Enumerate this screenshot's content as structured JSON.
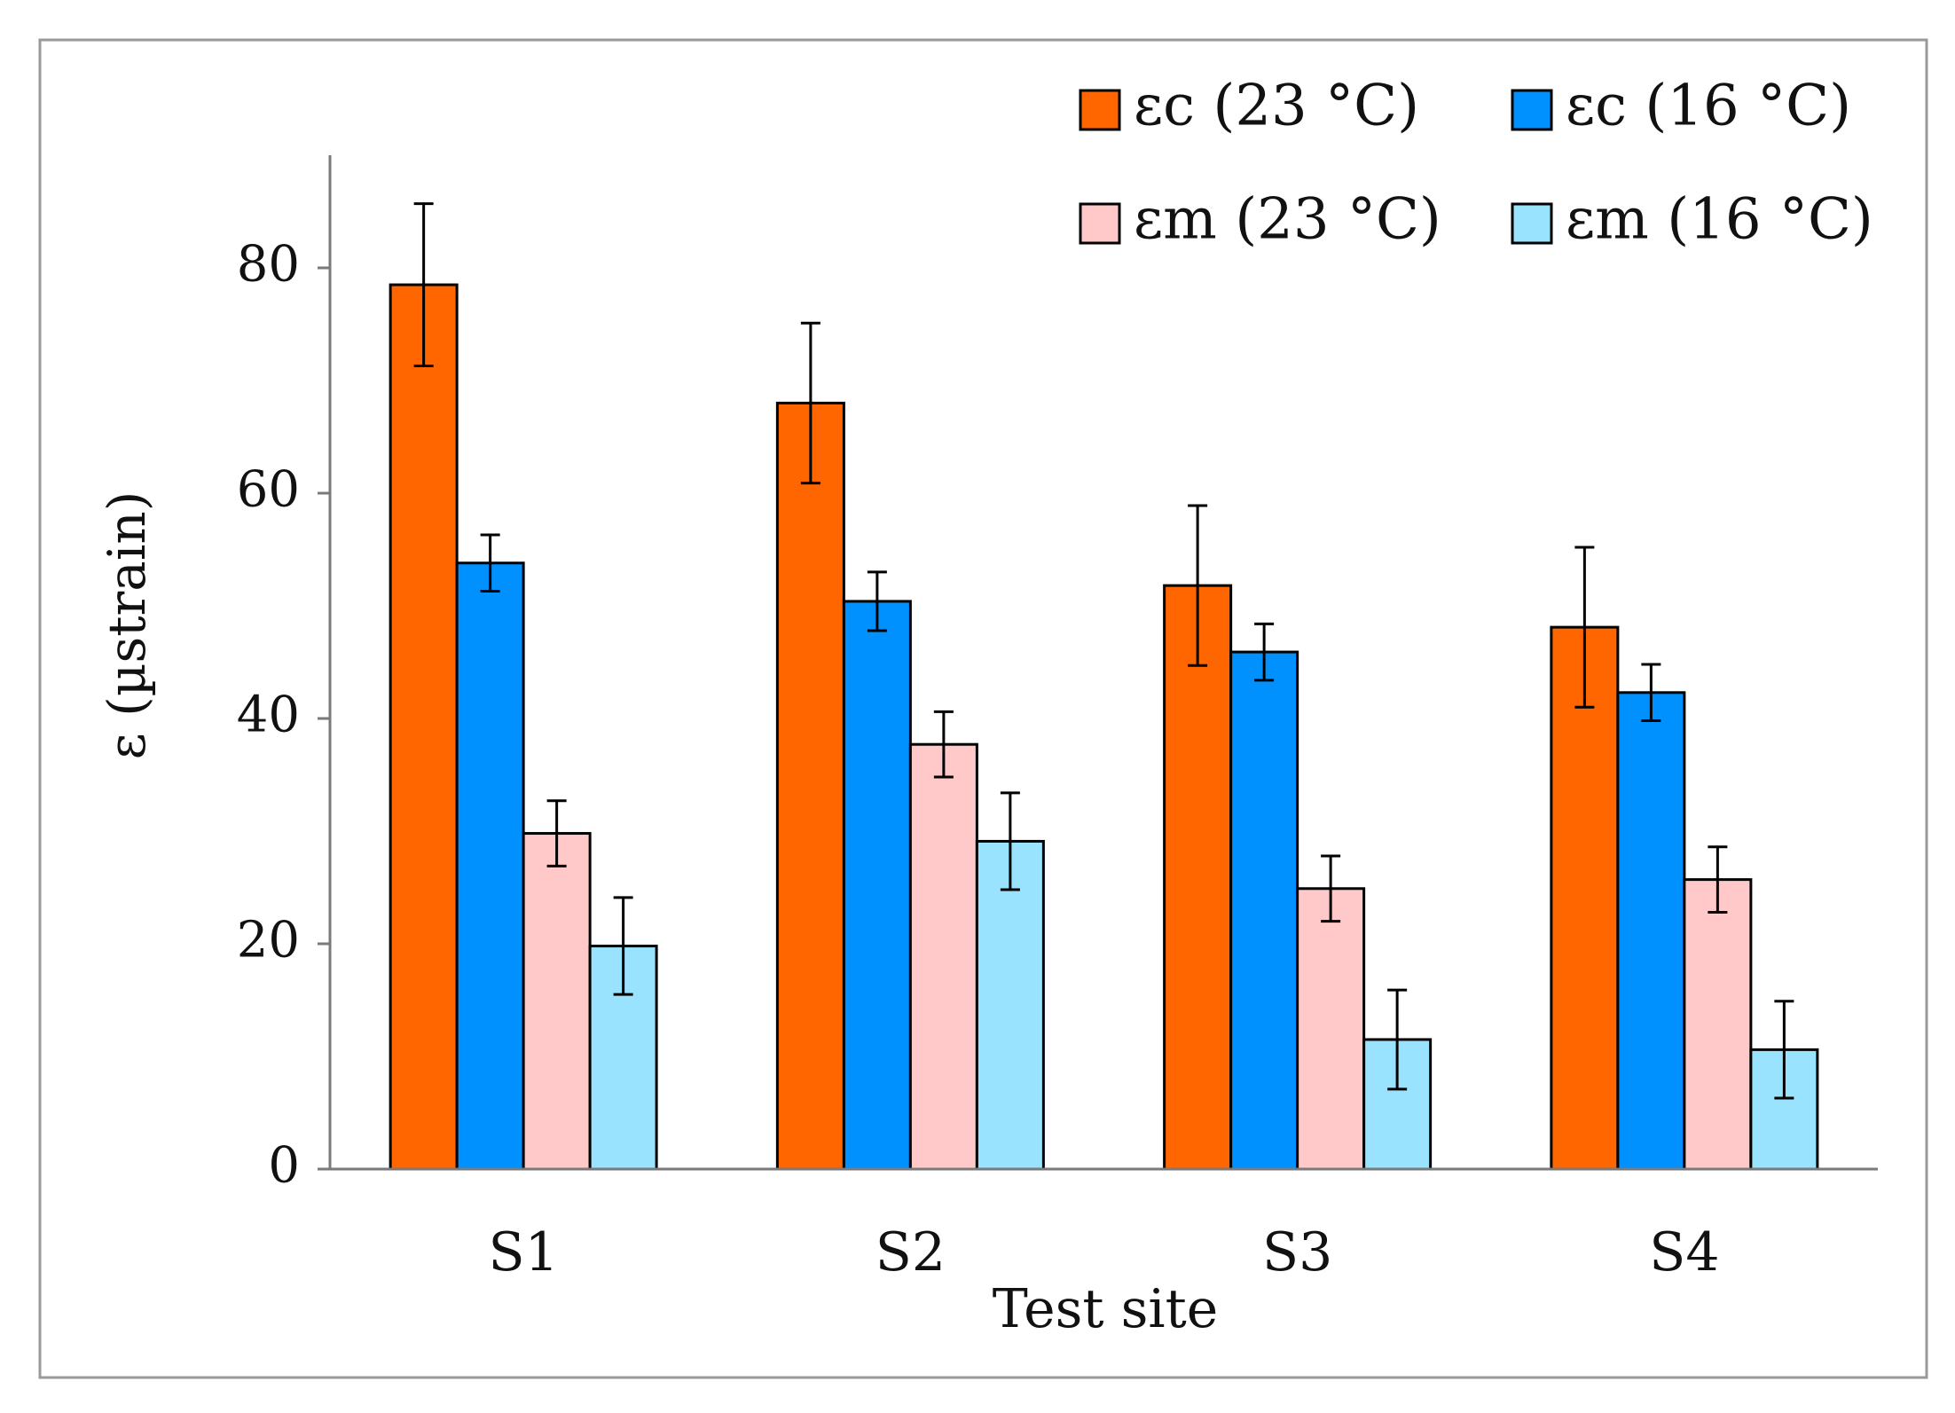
{
  "chart_data": {
    "type": "bar",
    "title": "",
    "xlabel": "Test site",
    "ylabel": "ε (µstrain)",
    "categories": [
      "S1",
      "S2",
      "S3",
      "S4"
    ],
    "ylim": [
      0,
      90
    ],
    "yticks": [
      0,
      20,
      40,
      60,
      80
    ],
    "grid": false,
    "legend_position": "top-right",
    "series": [
      {
        "name": "εc (23 °C)",
        "color": "#FF6600",
        "values": [
          78.5,
          68,
          51.8,
          48.1
        ],
        "errors": [
          7.2,
          7.1,
          7.1,
          7.1
        ]
      },
      {
        "name": "εc (16 °C)",
        "color": "#0091FF",
        "values": [
          53.8,
          50.4,
          45.9,
          42.3
        ],
        "errors": [
          2.5,
          2.6,
          2.5,
          2.5
        ]
      },
      {
        "name": "εm (23 °C)",
        "color": "#FFC9C9",
        "values": [
          29.8,
          37.7,
          24.9,
          25.7
        ],
        "errors": [
          2.9,
          2.9,
          2.9,
          2.9
        ]
      },
      {
        "name": "εm (16 °C)",
        "color": "#99E3FF",
        "values": [
          19.8,
          29.1,
          11.5,
          10.6
        ],
        "errors": [
          4.3,
          4.3,
          4.4,
          4.3
        ]
      }
    ]
  }
}
